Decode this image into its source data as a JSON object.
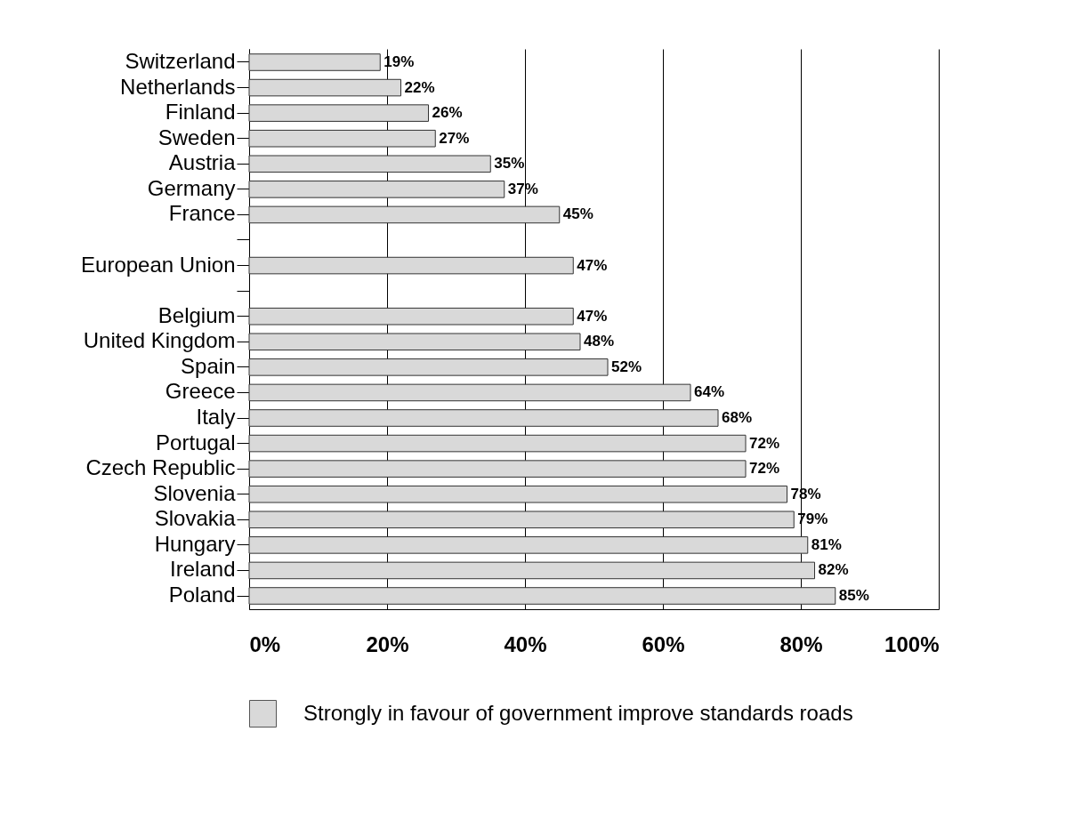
{
  "chart_data": {
    "type": "bar",
    "orientation": "horizontal",
    "categories": [
      "Switzerland",
      "Netherlands",
      "Finland",
      "Sweden",
      "Austria",
      "Germany",
      "France",
      null,
      "European Union",
      null,
      "Belgium",
      "United Kingdom",
      "Spain",
      "Greece",
      "Italy",
      "Portugal",
      "Czech Republic",
      "Slovenia",
      "Slovakia",
      "Hungary",
      "Ireland",
      "Poland"
    ],
    "series": [
      {
        "name": "Strongly in favour of government improve standards roads",
        "color": "#d9d9d9",
        "values": [
          19,
          22,
          26,
          27,
          35,
          37,
          45,
          null,
          47,
          null,
          47,
          48,
          52,
          64,
          68,
          72,
          72,
          78,
          79,
          81,
          82,
          85
        ],
        "value_labels": [
          "19%",
          "22%",
          "26%",
          "27%",
          "35%",
          "37%",
          "45%",
          null,
          "47%",
          null,
          "47%",
          "48%",
          "52%",
          "64%",
          "68%",
          "72%",
          "72%",
          "78%",
          "79%",
          "81%",
          "82%",
          "85%"
        ]
      }
    ],
    "xlim": [
      0,
      100
    ],
    "xticks": [
      {
        "value": 0,
        "label": "0%"
      },
      {
        "value": 20,
        "label": "20%"
      },
      {
        "value": 40,
        "label": "40%"
      },
      {
        "value": 60,
        "label": "60%"
      },
      {
        "value": 80,
        "label": "80%"
      },
      {
        "value": 100,
        "label": "100%"
      }
    ],
    "grid": "x",
    "legend": "bottom"
  }
}
